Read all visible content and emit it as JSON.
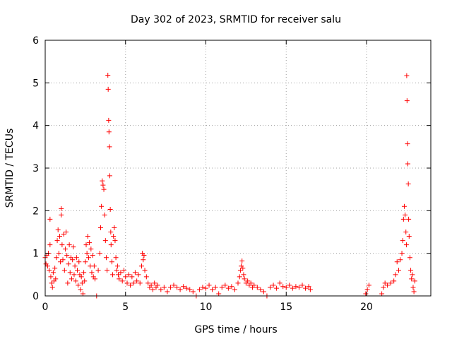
{
  "chart_data": {
    "type": "scatter",
    "title": "Day 302 of 2023, SRMTID for receiver salu",
    "xlabel": "GPS time / hours",
    "ylabel": "SRMTID / TECUs",
    "xlim": [
      0,
      24
    ],
    "ylim": [
      0,
      6
    ],
    "x_ticks": [
      0,
      5,
      10,
      15,
      20
    ],
    "y_ticks": [
      0,
      1,
      2,
      3,
      4,
      5,
      6
    ],
    "grid": true,
    "marker": "+",
    "series": [
      {
        "name": "SRMTID",
        "color": "#ff0000",
        "points": [
          [
            0.0,
            0.9
          ],
          [
            0.05,
            0.75
          ],
          [
            0.1,
            0.95
          ],
          [
            0.15,
            0.7
          ],
          [
            0.2,
            1.0
          ],
          [
            0.25,
            0.6
          ],
          [
            0.3,
            1.8
          ],
          [
            0.3,
            1.2
          ],
          [
            0.35,
            0.45
          ],
          [
            0.4,
            0.3
          ],
          [
            0.45,
            0.2
          ],
          [
            0.5,
            0.55
          ],
          [
            0.55,
            0.35
          ],
          [
            0.6,
            0.65
          ],
          [
            0.65,
            0.4
          ],
          [
            0.7,
            0.9
          ],
          [
            0.75,
            1.3
          ],
          [
            0.8,
            1.55
          ],
          [
            0.85,
            1.0
          ],
          [
            0.9,
            1.4
          ],
          [
            0.95,
            0.8
          ],
          [
            1.0,
            2.05
          ],
          [
            1.0,
            1.9
          ],
          [
            1.05,
            1.2
          ],
          [
            1.1,
            0.85
          ],
          [
            1.15,
            1.45
          ],
          [
            1.2,
            0.6
          ],
          [
            1.25,
            1.1
          ],
          [
            1.3,
            1.5
          ],
          [
            1.35,
            0.95
          ],
          [
            1.4,
            0.3
          ],
          [
            1.45,
            0.75
          ],
          [
            1.5,
            1.2
          ],
          [
            1.55,
            0.55
          ],
          [
            1.6,
            0.9
          ],
          [
            1.65,
            0.4
          ],
          [
            1.7,
            0.85
          ],
          [
            1.75,
            1.15
          ],
          [
            1.8,
            0.5
          ],
          [
            1.85,
            0.7
          ],
          [
            1.9,
            0.35
          ],
          [
            1.95,
            0.9
          ],
          [
            2.0,
            0.6
          ],
          [
            2.05,
            0.25
          ],
          [
            2.1,
            0.8
          ],
          [
            2.15,
            0.5
          ],
          [
            2.2,
            0.15
          ],
          [
            2.25,
            0.45
          ],
          [
            2.3,
            0.3
          ],
          [
            2.35,
            0.05
          ],
          [
            2.4,
            0.55
          ],
          [
            2.45,
            0.35
          ],
          [
            2.5,
            0.8
          ],
          [
            2.55,
            1.2
          ],
          [
            2.6,
            1.0
          ],
          [
            2.65,
            1.4
          ],
          [
            2.7,
            0.9
          ],
          [
            2.75,
            1.25
          ],
          [
            2.8,
            0.7
          ],
          [
            2.85,
            1.1
          ],
          [
            2.9,
            0.55
          ],
          [
            2.95,
            0.95
          ],
          [
            3.0,
            0.45
          ],
          [
            3.05,
            0.7
          ],
          [
            3.1,
            0.4
          ],
          [
            3.2,
            0.0
          ],
          [
            3.3,
            0.6
          ],
          [
            3.4,
            1.0
          ],
          [
            3.45,
            1.6
          ],
          [
            3.5,
            2.1
          ],
          [
            3.55,
            2.7
          ],
          [
            3.6,
            2.6
          ],
          [
            3.65,
            2.5
          ],
          [
            3.7,
            1.9
          ],
          [
            3.75,
            1.3
          ],
          [
            3.8,
            0.9
          ],
          [
            3.85,
            0.6
          ],
          [
            3.9,
            5.18
          ],
          [
            3.92,
            4.85
          ],
          [
            3.95,
            4.12
          ],
          [
            3.97,
            3.85
          ],
          [
            4.0,
            3.5
          ],
          [
            4.02,
            2.82
          ],
          [
            4.05,
            2.03
          ],
          [
            4.08,
            1.5
          ],
          [
            4.1,
            1.2
          ],
          [
            4.15,
            0.8
          ],
          [
            4.2,
            0.5
          ],
          [
            4.25,
            1.4
          ],
          [
            4.3,
            1.6
          ],
          [
            4.35,
            1.3
          ],
          [
            4.4,
            0.9
          ],
          [
            4.45,
            0.6
          ],
          [
            4.5,
            0.7
          ],
          [
            4.55,
            0.5
          ],
          [
            4.6,
            0.4
          ],
          [
            4.7,
            0.55
          ],
          [
            4.8,
            0.35
          ],
          [
            4.9,
            0.6
          ],
          [
            5.0,
            0.45
          ],
          [
            5.1,
            0.3
          ],
          [
            5.2,
            0.5
          ],
          [
            5.3,
            0.25
          ],
          [
            5.4,
            0.45
          ],
          [
            5.5,
            0.3
          ],
          [
            5.6,
            0.55
          ],
          [
            5.7,
            0.35
          ],
          [
            5.8,
            0.5
          ],
          [
            5.9,
            0.3
          ],
          [
            6.0,
            0.7
          ],
          [
            6.05,
            1.0
          ],
          [
            6.1,
            0.85
          ],
          [
            6.15,
            0.95
          ],
          [
            6.2,
            0.6
          ],
          [
            6.3,
            0.45
          ],
          [
            6.4,
            0.3
          ],
          [
            6.5,
            0.2
          ],
          [
            6.6,
            0.25
          ],
          [
            6.7,
            0.15
          ],
          [
            6.8,
            0.3
          ],
          [
            6.9,
            0.2
          ],
          [
            7.0,
            0.25
          ],
          [
            7.2,
            0.15
          ],
          [
            7.4,
            0.2
          ],
          [
            7.6,
            0.1
          ],
          [
            7.8,
            0.2
          ],
          [
            8.0,
            0.25
          ],
          [
            8.2,
            0.2
          ],
          [
            8.4,
            0.15
          ],
          [
            8.6,
            0.22
          ],
          [
            8.8,
            0.18
          ],
          [
            9.0,
            0.15
          ],
          [
            9.2,
            0.1
          ],
          [
            9.4,
            0.0
          ],
          [
            9.6,
            0.15
          ],
          [
            9.8,
            0.2
          ],
          [
            10.0,
            0.18
          ],
          [
            10.2,
            0.25
          ],
          [
            10.4,
            0.15
          ],
          [
            10.6,
            0.2
          ],
          [
            10.8,
            0.05
          ],
          [
            11.0,
            0.2
          ],
          [
            11.2,
            0.25
          ],
          [
            11.4,
            0.18
          ],
          [
            11.6,
            0.22
          ],
          [
            11.8,
            0.15
          ],
          [
            12.0,
            0.3
          ],
          [
            12.1,
            0.45
          ],
          [
            12.15,
            0.6
          ],
          [
            12.2,
            0.7
          ],
          [
            12.25,
            0.82
          ],
          [
            12.3,
            0.65
          ],
          [
            12.35,
            0.5
          ],
          [
            12.4,
            0.4
          ],
          [
            12.5,
            0.3
          ],
          [
            12.6,
            0.35
          ],
          [
            12.7,
            0.25
          ],
          [
            12.8,
            0.3
          ],
          [
            12.9,
            0.2
          ],
          [
            13.0,
            0.25
          ],
          [
            13.2,
            0.2
          ],
          [
            13.4,
            0.15
          ],
          [
            13.6,
            0.1
          ],
          [
            13.8,
            0.0
          ],
          [
            14.0,
            0.2
          ],
          [
            14.2,
            0.25
          ],
          [
            14.4,
            0.18
          ],
          [
            14.6,
            0.3
          ],
          [
            14.8,
            0.22
          ],
          [
            15.0,
            0.2
          ],
          [
            15.2,
            0.25
          ],
          [
            15.4,
            0.18
          ],
          [
            15.6,
            0.22
          ],
          [
            15.8,
            0.2
          ],
          [
            16.0,
            0.25
          ],
          [
            16.2,
            0.18
          ],
          [
            16.4,
            0.22
          ],
          [
            16.5,
            0.15
          ],
          [
            19.95,
            0.05
          ],
          [
            20.05,
            0.15
          ],
          [
            20.15,
            0.25
          ],
          [
            20.95,
            0.05
          ],
          [
            21.05,
            0.2
          ],
          [
            21.15,
            0.3
          ],
          [
            21.3,
            0.25
          ],
          [
            21.5,
            0.3
          ],
          [
            21.7,
            0.35
          ],
          [
            21.8,
            0.5
          ],
          [
            21.9,
            0.8
          ],
          [
            22.0,
            0.6
          ],
          [
            22.1,
            0.85
          ],
          [
            22.2,
            1.0
          ],
          [
            22.25,
            1.3
          ],
          [
            22.3,
            1.8
          ],
          [
            22.35,
            2.1
          ],
          [
            22.4,
            1.9
          ],
          [
            22.45,
            1.5
          ],
          [
            22.48,
            1.2
          ],
          [
            22.5,
            5.17
          ],
          [
            22.52,
            4.58
          ],
          [
            22.55,
            3.57
          ],
          [
            22.57,
            3.1
          ],
          [
            22.6,
            2.63
          ],
          [
            22.62,
            1.8
          ],
          [
            22.65,
            1.4
          ],
          [
            22.7,
            0.9
          ],
          [
            22.75,
            0.6
          ],
          [
            22.8,
            0.4
          ],
          [
            22.85,
            0.5
          ],
          [
            22.9,
            0.2
          ],
          [
            22.95,
            0.1
          ],
          [
            23.0,
            0.35
          ]
        ]
      }
    ]
  }
}
